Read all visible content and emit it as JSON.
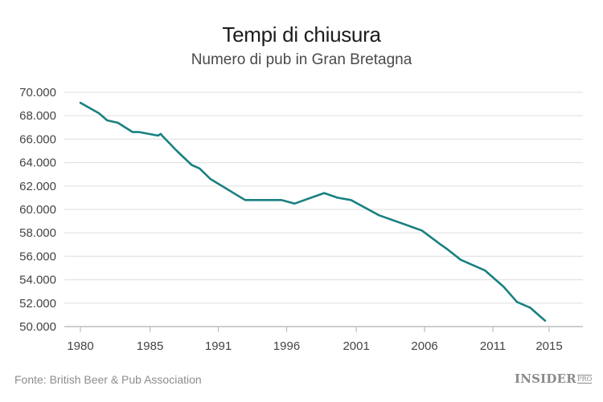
{
  "header": {
    "title": "Tempi di chiusura",
    "subtitle": "Numero di pub in Gran Bretagna"
  },
  "footer": {
    "source": "Fonte: British Beer & Pub Association",
    "logo_main": "INSIDER",
    "logo_suffix": "PRO"
  },
  "colors": {
    "line": "#1a8080",
    "grid": "#e3e3e3",
    "axis": "#bdbdbd"
  },
  "chart_data": {
    "type": "line",
    "title": "Tempi di chiusura",
    "subtitle": "Numero di pub in Gran Bretagna",
    "xlabel": "",
    "ylabel": "",
    "ylim": [
      50000,
      70000
    ],
    "y_ticks": [
      50000,
      52000,
      54000,
      56000,
      58000,
      60000,
      62000,
      64000,
      66000,
      68000,
      70000
    ],
    "y_tick_labels": [
      "50.000",
      "52.000",
      "54.000",
      "56.000",
      "58.000",
      "60.000",
      "62.000",
      "64.000",
      "66.000",
      "68.000",
      "70.000"
    ],
    "x_tick_labels": [
      "1980",
      "1985",
      "1991",
      "1996",
      "2001",
      "2006",
      "2011",
      "2015"
    ],
    "x_tick_positions": [
      1980,
      1985.2,
      1990.3,
      1995.4,
      2000.6,
      2005.7,
      2010.8,
      2015
    ],
    "grid": true,
    "legend": "none",
    "source": "British Beer & Pub Association",
    "series": [
      {
        "name": "Numero di pub",
        "x": [
          1980,
          1981.4,
          1982,
          1982.8,
          1983.9,
          1984.4,
          1985.8,
          1986,
          1986.1,
          1987.2,
          1988.3,
          1988.9,
          1989.7,
          1992.3,
          1995,
          1996,
          1998.2,
          1999.2,
          2000.2,
          2002.3,
          2005.5,
          2006.9,
          2007.4,
          2008.4,
          2010.2,
          2011.6,
          2012.6,
          2013.6,
          2014,
          2014.7
        ],
        "values": [
          69100,
          68200,
          67600,
          67400,
          66600,
          66600,
          66300,
          66450,
          66300,
          65000,
          63800,
          63500,
          62600,
          60800,
          60800,
          60500,
          61400,
          61000,
          60800,
          59500,
          58200,
          57000,
          56600,
          55700,
          54800,
          53400,
          52100,
          51600,
          51200,
          50500
        ]
      }
    ]
  }
}
